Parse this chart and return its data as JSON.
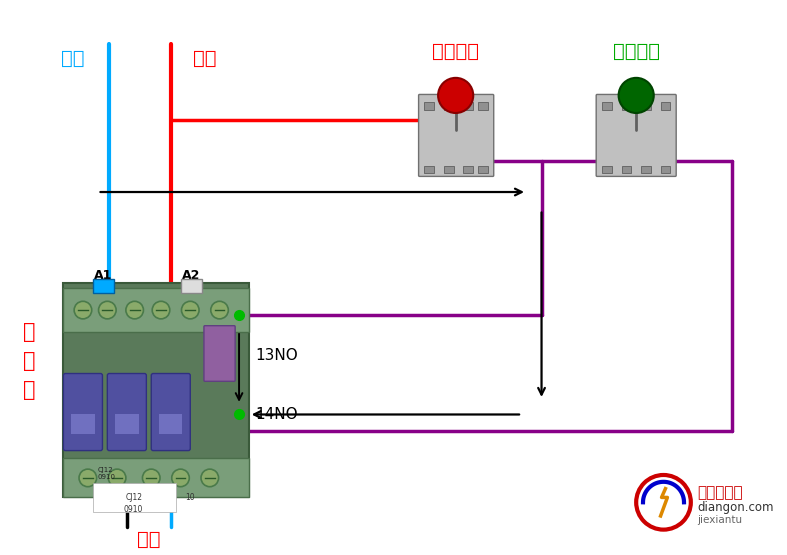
{
  "bg_color": "#ffffff",
  "zero_line_label": "零线",
  "fire_line_label": "火线",
  "stop_btn_label": "停止按鈕",
  "start_btn_label": "启动按鈕",
  "contact_label_1": "接",
  "contact_label_2": "触",
  "contact_label_3": "器",
  "load_label": "负载",
  "label_13NO": "13NO",
  "label_14NO": "14NO",
  "label_A1": "A1",
  "label_A2": "A2",
  "zero_line_color": "#00aaff",
  "fire_line_color": "#ff0000",
  "purple_line_color": "#880088",
  "black_line_color": "#000000",
  "stop_btn_color": "#cc0000",
  "start_btn_color": "#006600",
  "dot_color": "#00bb00",
  "watermark_text1": "电工学习网",
  "watermark_text2": "diangon.com",
  "watermark_text3": "jiexiantu",
  "fig_width": 7.87,
  "fig_height": 5.55,
  "dpi": 100
}
